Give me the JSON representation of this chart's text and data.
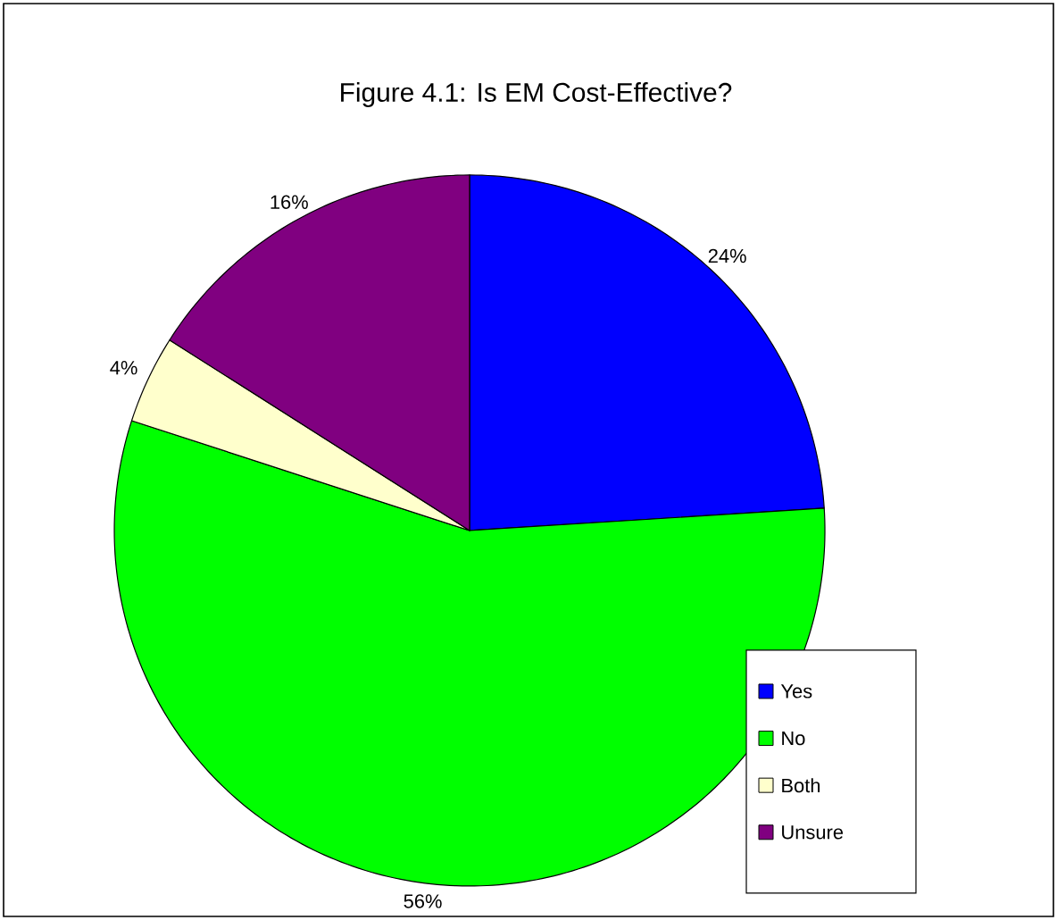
{
  "chart_data": {
    "type": "pie",
    "title": "Figure 4.1: Is EM Cost-Effective?",
    "categories": [
      "Yes",
      "No",
      "Both",
      "Unsure"
    ],
    "values": [
      24,
      56,
      4,
      16
    ],
    "colors": [
      "#0000ff",
      "#00ff00",
      "#ffffcc",
      "#800080"
    ],
    "value_labels": [
      "24%",
      "56%",
      "4%",
      "16%"
    ],
    "legend": "bottom right"
  }
}
